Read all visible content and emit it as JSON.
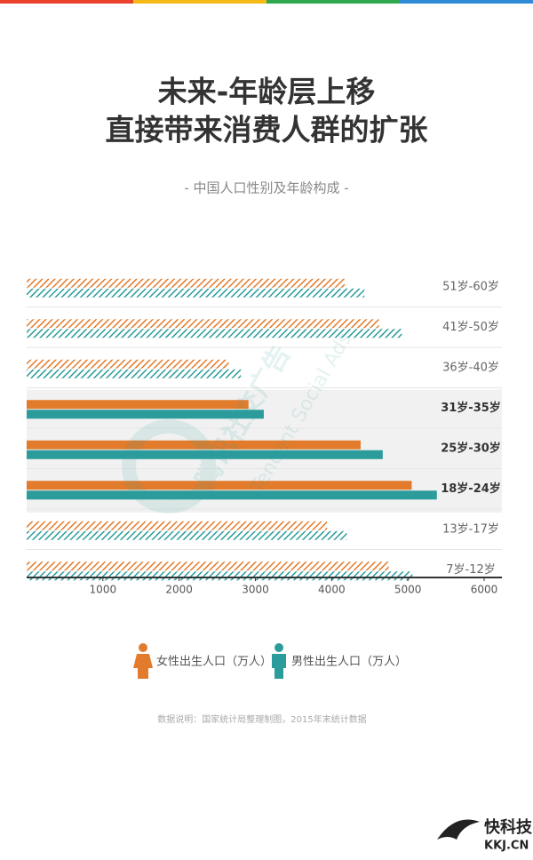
{
  "chart_data": {
    "type": "hbar",
    "title": [
      "未来-年龄层上移",
      "直接带来消费人群的扩张"
    ],
    "subtitle": "- 中国人口性别及年龄构成 -",
    "categories": [
      "51岁-60岁",
      "41岁-50岁",
      "36岁-40岁",
      "31岁-35岁",
      "25岁-30岁",
      "18岁-24岁",
      "13岁-17岁",
      "7岁-12岁"
    ],
    "series": [
      {
        "name": "女性出生人口（万人）",
        "color": "#e27b2b",
        "values": [
          4170,
          4620,
          2650,
          2910,
          4380,
          5050,
          3940,
          4750
        ]
      },
      {
        "name": "男性出生人口（万人）",
        "color": "#2b9b9b",
        "values": [
          4430,
          4920,
          2810,
          3110,
          4670,
          5380,
          4200,
          5060
        ]
      }
    ],
    "highlight": [
      false,
      false,
      false,
      true,
      true,
      true,
      false,
      false
    ],
    "xlim": [
      0,
      6000
    ],
    "xticks": [
      1000,
      2000,
      3000,
      4000,
      5000,
      6000
    ],
    "watermark": [
      "腾讯社交广告",
      "Tencent Social Ads"
    ],
    "footnote": "数据说明：国家统计局整理制图，2015年末统计数据",
    "logo": [
      "快科技",
      "KKJ.CN"
    ]
  }
}
